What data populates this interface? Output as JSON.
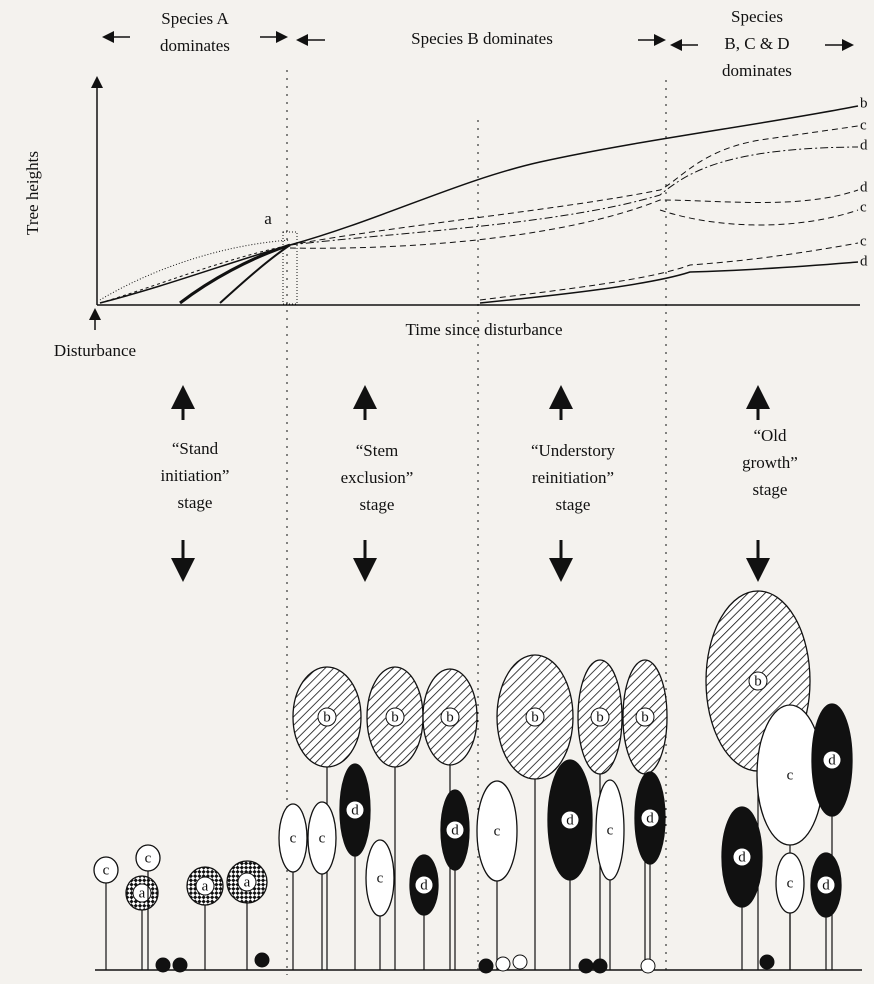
{
  "header": {
    "phases": [
      {
        "lines": [
          "Species A",
          "dominates"
        ]
      },
      {
        "lines": [
          "Species B dominates"
        ]
      },
      {
        "lines": [
          "Species",
          "B, C & D",
          "dominates"
        ]
      }
    ]
  },
  "graph": {
    "y_axis_label": "Tree heights",
    "x_axis_label": "Time since disturbance",
    "origin_label": "Disturbance",
    "point_label": "a",
    "curve_labels": [
      "b",
      "c",
      "d",
      "d",
      "c",
      "c",
      "d"
    ]
  },
  "stages": [
    {
      "lines": [
        "“Stand",
        "initiation”",
        "stage"
      ]
    },
    {
      "lines": [
        "“Stem",
        "exclusion”",
        "stage"
      ]
    },
    {
      "lines": [
        "“Understory",
        "reinitiation”",
        "stage"
      ]
    },
    {
      "lines": [
        "“Old",
        "growth”",
        "stage"
      ]
    }
  ],
  "trees": [
    {
      "label": "c"
    },
    {
      "label": "a"
    },
    {
      "label": "c"
    },
    {
      "label": "a"
    },
    {
      "label": "a"
    },
    {
      "label": "b"
    },
    {
      "label": "b"
    },
    {
      "label": "b"
    },
    {
      "label": "c"
    },
    {
      "label": "c"
    },
    {
      "label": "d"
    },
    {
      "label": "c"
    },
    {
      "label": "d"
    },
    {
      "label": "d"
    },
    {
      "label": "b"
    },
    {
      "label": "b"
    },
    {
      "label": "b"
    },
    {
      "label": "c"
    },
    {
      "label": "d"
    },
    {
      "label": "c"
    },
    {
      "label": "d"
    },
    {
      "label": "b"
    },
    {
      "label": "c"
    },
    {
      "label": "d"
    },
    {
      "label": "d"
    },
    {
      "label": "c"
    },
    {
      "label": "d"
    }
  ]
}
